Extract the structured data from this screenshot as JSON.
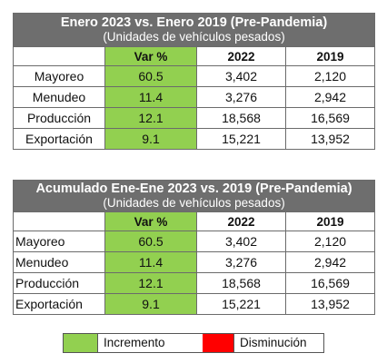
{
  "tables": [
    {
      "title": "Enero 2023 vs. Enero 2019 (Pre-Pandemia)",
      "subtitle": "(Unidades de vehículos pesados)",
      "columns": [
        "",
        "Var %",
        "2022",
        "2019"
      ],
      "rows": [
        {
          "label": "Mayoreo",
          "var": "60.5",
          "y2022": "3,402",
          "y2019": "2,120"
        },
        {
          "label": "Menudeo",
          "var": "11.4",
          "y2022": "3,276",
          "y2019": "2,942"
        },
        {
          "label": "Producción",
          "var": "12.1",
          "y2022": "18,568",
          "y2019": "16,569"
        },
        {
          "label": "Exportación",
          "var": "9.1",
          "y2022": "15,221",
          "y2019": "13,952"
        }
      ]
    },
    {
      "title": "Acumulado Ene-Ene 2023 vs. 2019 (Pre-Pandemia)",
      "subtitle": "(Unidades de vehículos pesados)",
      "columns": [
        "",
        "Var %",
        "2022",
        "2019"
      ],
      "rows": [
        {
          "label": "Mayoreo",
          "var": "60.5",
          "y2022": "3,402",
          "y2019": "2,120"
        },
        {
          "label": "Menudeo",
          "var": "11.4",
          "y2022": "3,276",
          "y2019": "2,942"
        },
        {
          "label": "Producción",
          "var": "12.1",
          "y2022": "18,568",
          "y2019": "16,569"
        },
        {
          "label": "Exportación",
          "var": "9.1",
          "y2022": "15,221",
          "y2019": "13,952"
        }
      ]
    }
  ],
  "legend": {
    "increment_label": "Incremento",
    "decrease_label": "Disminución",
    "increment_color": "#92d050",
    "decrease_color": "#ff0000"
  }
}
